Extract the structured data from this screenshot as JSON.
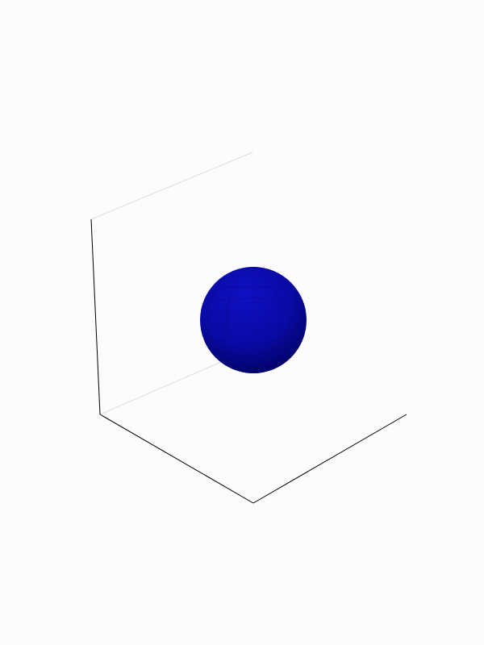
{
  "scene": {
    "background_color": "#fcfcfc",
    "axis_color_front": "#000000",
    "axis_color_back": "#d8d8d8",
    "sphere": {
      "color_light": "#1010c4",
      "color_mid": "#0a0aa6",
      "color_dark": "#000058",
      "edge_color": "#090990"
    }
  }
}
